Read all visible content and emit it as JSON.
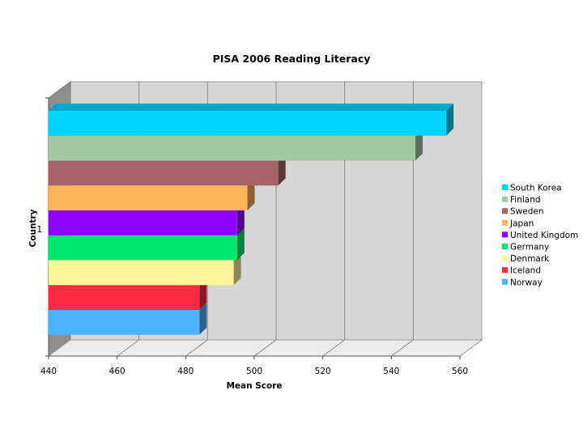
{
  "chart_data": {
    "type": "bar",
    "orientation": "horizontal",
    "style": "3d",
    "title": "PISA 2006 Reading Literacy",
    "xlabel": "Mean Score",
    "ylabel": "Country",
    "category_ticks": [
      "1"
    ],
    "xlim": [
      440,
      560
    ],
    "x_ticks": [
      440,
      460,
      480,
      500,
      520,
      540,
      560
    ],
    "grid": "vertical",
    "legend": "right",
    "series": [
      {
        "name": "South Korea",
        "value": 556,
        "color": "#00d5ff"
      },
      {
        "name": "Finland",
        "value": 547,
        "color": "#a3c9a2"
      },
      {
        "name": "Sweden",
        "value": 507,
        "color": "#a76468"
      },
      {
        "name": "Japan",
        "value": 498,
        "color": "#ffb35b"
      },
      {
        "name": "United Kingdom",
        "value": 495,
        "color": "#8d00ff"
      },
      {
        "name": "Germany",
        "value": 495,
        "color": "#00e86c"
      },
      {
        "name": "Denmark",
        "value": 494,
        "color": "#fff59a"
      },
      {
        "name": "Iceland",
        "value": 484,
        "color": "#ff2a42"
      },
      {
        "name": "Norway",
        "value": 484,
        "color": "#4db3ff"
      }
    ]
  }
}
